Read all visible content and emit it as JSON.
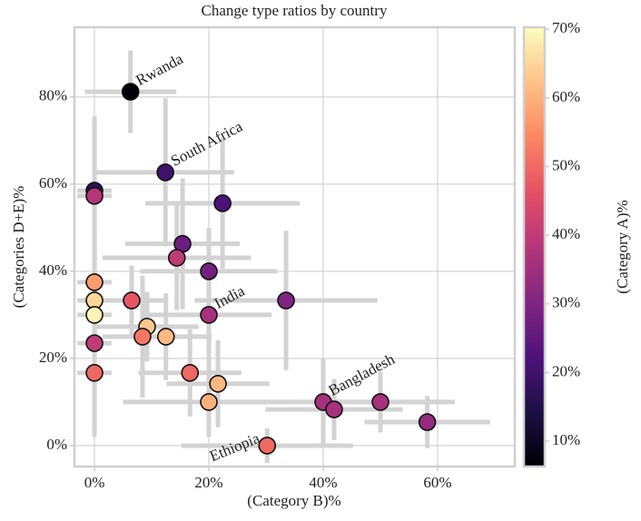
{
  "chart_data": {
    "type": "scatter",
    "title": "Change type ratios by country",
    "x_label": "(Category B)%",
    "y_label": "(Categories D+E)%",
    "colorbar_label": "(Category A)%",
    "xlim": [
      -3.5,
      73.5
    ],
    "ylim": [
      -4.8,
      96
    ],
    "clim": [
      6.3,
      70.3
    ],
    "xticks": [
      {
        "value": 0,
        "label": "0%"
      },
      {
        "value": 20,
        "label": "20%"
      },
      {
        "value": 40,
        "label": "40%"
      },
      {
        "value": 60,
        "label": "60%"
      }
    ],
    "yticks": [
      {
        "value": 0,
        "label": "0%"
      },
      {
        "value": 20,
        "label": "20%"
      },
      {
        "value": 40,
        "label": "40%"
      },
      {
        "value": 60,
        "label": "60%"
      },
      {
        "value": 80,
        "label": "80%"
      }
    ],
    "cticks": [
      {
        "value": 10,
        "label": "10%"
      },
      {
        "value": 20,
        "label": "20%"
      },
      {
        "value": 30,
        "label": "30%"
      },
      {
        "value": 40,
        "label": "40%"
      },
      {
        "value": 50,
        "label": "50%"
      },
      {
        "value": 60,
        "label": "60%"
      },
      {
        "value": 70,
        "label": "70%"
      }
    ],
    "colormap": [
      "#000004",
      "#1c1044",
      "#4f127b",
      "#812581",
      "#b5367a",
      "#e55064",
      "#fb8761",
      "#fec287",
      "#fcfdbf"
    ],
    "grid": true,
    "x": [
      6.3,
      12.4,
      0,
      0,
      22.4,
      15.4,
      14.4,
      20,
      33.5,
      20,
      6.5,
      0,
      0,
      0,
      9.2,
      8.4,
      12.5,
      0,
      0,
      16.7,
      21.6,
      20,
      40,
      41.9,
      50,
      58.2,
      30.2
    ],
    "y": [
      81.2,
      62.7,
      58.5,
      57.3,
      55.6,
      46.3,
      43.1,
      40,
      33.3,
      30,
      33.3,
      37.5,
      33.3,
      30,
      27.3,
      25,
      25,
      23.5,
      16.7,
      16.7,
      14.2,
      10,
      10,
      8.3,
      10,
      5.4,
      0
    ],
    "c": [
      7,
      20,
      17,
      38,
      22,
      27,
      40,
      28,
      30,
      36,
      47,
      57,
      65,
      69,
      63,
      52,
      61,
      40,
      50,
      50,
      61,
      60,
      36,
      36,
      36,
      33,
      50
    ],
    "xerr": [
      8,
      12,
      3,
      3,
      13.5,
      10,
      13,
      12,
      16,
      11,
      6,
      3,
      3,
      3,
      9,
      7,
      8,
      3,
      3,
      9,
      9,
      15,
      21,
      12,
      13,
      11,
      15
    ],
    "yerr": [
      9.5,
      17,
      17,
      15,
      15,
      15,
      12,
      10,
      16,
      12,
      8,
      12,
      10,
      28,
      8,
      14,
      10,
      10,
      12,
      10,
      10,
      8,
      10,
      7,
      7,
      6,
      4
    ],
    "labels": [
      "Rwanda",
      "South Africa",
      null,
      null,
      null,
      null,
      null,
      null,
      null,
      "India",
      null,
      null,
      null,
      null,
      null,
      null,
      null,
      null,
      null,
      null,
      null,
      null,
      "Bangladesh",
      null,
      null,
      null,
      "Ethiopia"
    ]
  }
}
